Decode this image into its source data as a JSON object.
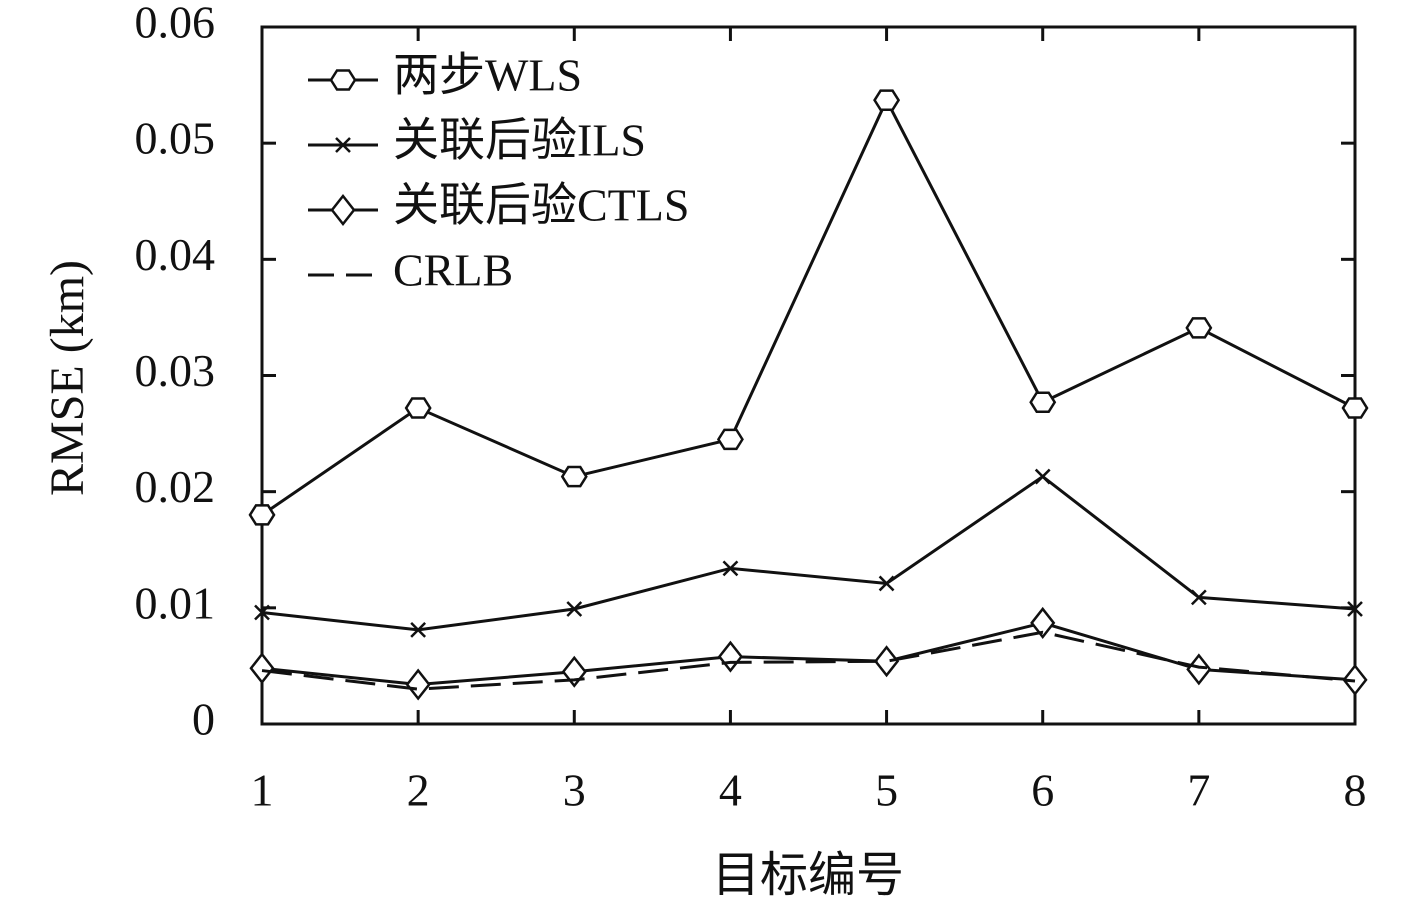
{
  "chart_data": {
    "type": "line",
    "x_label": "目标编号",
    "y_label": "RMSE (km)",
    "x": [
      1,
      2,
      3,
      4,
      5,
      6,
      7,
      8
    ],
    "xlim": [
      1,
      8
    ],
    "xticks": [
      1,
      2,
      3,
      4,
      5,
      6,
      7,
      8
    ],
    "ylim": [
      0,
      0.06
    ],
    "yticks": [
      0,
      0.01,
      0.02,
      0.03,
      0.04,
      0.05,
      0.06
    ],
    "legend_position": "upper-left",
    "series": [
      {
        "name": "两步WLS",
        "color": "#111111",
        "marker": "hexagon",
        "dash": "solid",
        "values": [
          0.018,
          0.0272,
          0.0213,
          0.0245,
          0.0537,
          0.0277,
          0.0341,
          0.0272
        ]
      },
      {
        "name": "关联后验ILS",
        "color": "#111111",
        "marker": "x",
        "dash": "solid",
        "values": [
          0.0096,
          0.0081,
          0.0099,
          0.0134,
          0.0121,
          0.0213,
          0.0109,
          0.0099
        ]
      },
      {
        "name": "关联后验CTLS",
        "color": "#111111",
        "marker": "diamond",
        "dash": "solid",
        "values": [
          0.0048,
          0.0034,
          0.0045,
          0.0058,
          0.0054,
          0.0087,
          0.0047,
          0.0038
        ]
      },
      {
        "name": "CRLB",
        "color": "#111111",
        "marker": "none",
        "dash": "dashed",
        "values": [
          0.0046,
          0.003,
          0.0038,
          0.0053,
          0.0054,
          0.0079,
          0.0049,
          0.0037
        ]
      }
    ]
  }
}
